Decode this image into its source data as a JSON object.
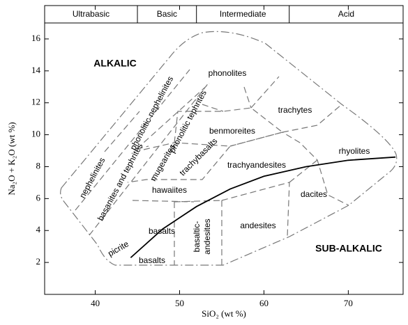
{
  "chart_data": {
    "type": "tas",
    "xlabel": "SiO₂ (wt %)",
    "ylabel": "Na₂O + K₂O (wt %)",
    "xlim": [
      34,
      76.5
    ],
    "ylim": [
      0,
      17
    ],
    "xticks": [
      40,
      50,
      60,
      70
    ],
    "yticks": [
      2,
      4,
      6,
      8,
      10,
      12,
      14,
      16
    ],
    "header": {
      "categories": [
        "Ultrabasic",
        "Basic",
        "Intermediate",
        "Acid"
      ],
      "divisions": [
        45,
        52,
        63
      ]
    },
    "curve": {
      "x": [
        44.2,
        48,
        52,
        56,
        60,
        65,
        70,
        75.6
      ],
      "values": [
        2.3,
        4.1,
        5.5,
        6.6,
        7.4,
        8.0,
        8.4,
        8.6
      ]
    },
    "fields": [
      "ALKALIC",
      "phonolites",
      "phonolitic nephelinites",
      "phonolitic tephrites",
      "trachytes",
      "benmoreites",
      "nephelinites",
      "mugearites",
      "trachybasalts",
      "trachyandesites",
      "rhyolites",
      "basanites and tephrites",
      "hawaiites",
      "dacites",
      "basalts",
      "basaltic-",
      "andesites",
      "andesites",
      "picrite",
      "basalts",
      "SUB-ALKALIC"
    ]
  }
}
